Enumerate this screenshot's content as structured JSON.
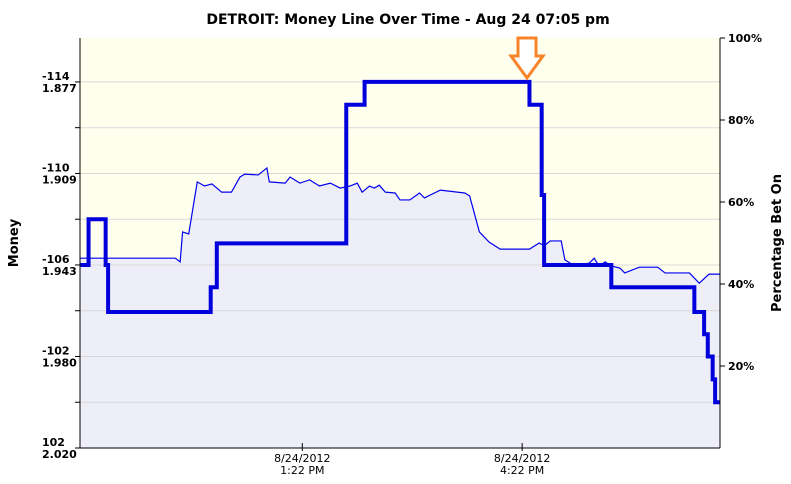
{
  "chart_data": {
    "type": "line",
    "title": "DETROIT: Money Line Over Time - Aug 24 07:05 pm",
    "ylabel": "Money",
    "y2label": "Percentage Bet On",
    "xlim": [
      "2012-08-24 10:20",
      "2012-08-24 19:04"
    ],
    "xticks": [
      {
        "value": "2012-08-24 13:22",
        "label": "8/24/2012\n1:22 PM"
      },
      {
        "value": "2012-08-24 16:22",
        "label": "8/24/2012\n4:22 PM"
      }
    ],
    "yticks": [
      {
        "value": 1.877,
        "label": "1.877",
        "moneyline": "-114"
      },
      {
        "value": 1.909,
        "label": "1.909",
        "moneyline": "-110"
      },
      {
        "value": 1.943,
        "label": "1.943",
        "moneyline": "-106"
      },
      {
        "value": 1.98,
        "label": "1.980",
        "moneyline": "-102"
      },
      {
        "value": 2.02,
        "label": "2.020",
        "moneyline": "102"
      }
    ],
    "y2lim": [
      0,
      100
    ],
    "y2ticks": [
      {
        "value": 20,
        "label": "20%"
      },
      {
        "value": 40,
        "label": "40%"
      },
      {
        "value": 60,
        "label": "60%"
      },
      {
        "value": 80,
        "label": "80%"
      },
      {
        "value": 100,
        "label": "100%"
      }
    ],
    "grid": true,
    "background": "#ffffee",
    "series": [
      {
        "axis": "y2",
        "color": "#0000ee",
        "fill": "#eeeef8",
        "width": 1.2,
        "x": [
          "2012-08-24 10:20",
          "2012-08-24 11:38",
          "2012-08-24 11:42",
          "2012-08-24 11:44",
          "2012-08-24 11:49",
          "2012-08-24 11:56",
          "2012-08-24 12:02",
          "2012-08-24 12:08",
          "2012-08-24 12:16",
          "2012-08-24 12:24",
          "2012-08-24 12:31",
          "2012-08-24 12:35",
          "2012-08-24 12:46",
          "2012-08-24 12:53",
          "2012-08-24 12:55",
          "2012-08-24 13:08",
          "2012-08-24 13:12",
          "2012-08-24 13:20",
          "2012-08-24 13:28",
          "2012-08-24 13:36",
          "2012-08-24 13:45",
          "2012-08-24 13:53",
          "2012-08-24 14:01",
          "2012-08-24 14:07",
          "2012-08-24 14:11",
          "2012-08-24 14:17",
          "2012-08-24 14:21",
          "2012-08-24 14:25",
          "2012-08-24 14:30",
          "2012-08-24 14:38",
          "2012-08-24 14:42",
          "2012-08-24 14:50",
          "2012-08-24 14:58",
          "2012-08-24 15:02",
          "2012-08-24 15:15",
          "2012-08-24 15:35",
          "2012-08-24 15:39",
          "2012-08-24 15:47",
          "2012-08-24 15:55",
          "2012-08-24 16:04",
          "2012-08-24 16:28",
          "2012-08-24 16:36",
          "2012-08-24 16:40",
          "2012-08-24 16:45",
          "2012-08-24 16:54",
          "2012-08-24 16:57",
          "2012-08-24 17:05",
          "2012-08-24 17:17",
          "2012-08-24 17:21",
          "2012-08-24 17:25",
          "2012-08-24 17:30",
          "2012-08-24 17:35",
          "2012-08-24 17:42",
          "2012-08-24 17:46",
          "2012-08-24 17:58",
          "2012-08-24 18:13",
          "2012-08-24 18:19",
          "2012-08-24 18:39",
          "2012-08-24 18:47",
          "2012-08-24 18:55",
          "2012-08-24 19:04"
        ],
        "values": [
          46.3,
          46.3,
          45.4,
          52.7,
          52.2,
          64.9,
          63.9,
          64.4,
          62.4,
          62.4,
          66.1,
          66.8,
          66.6,
          68.3,
          64.9,
          64.6,
          66.1,
          64.6,
          65.4,
          63.9,
          64.6,
          63.4,
          63.9,
          64.6,
          62.4,
          63.9,
          63.4,
          64.1,
          62.4,
          62.2,
          60.5,
          60.5,
          62.2,
          61.0,
          62.9,
          62.2,
          61.5,
          52.7,
          50.2,
          48.5,
          48.5,
          50.0,
          49.3,
          50.5,
          50.5,
          45.9,
          44.4,
          45.1,
          46.3,
          44.4,
          45.4,
          44.4,
          43.9,
          42.7,
          44.1,
          44.1,
          42.7,
          42.7,
          40.2,
          42.4,
          42.4
        ]
      },
      {
        "axis": "y",
        "color": "#0000dd",
        "style": "step",
        "width": 4,
        "x": [
          "2012-08-24 10:20",
          "2012-08-24 10:27",
          "2012-08-24 10:41",
          "2012-08-24 10:43",
          "2012-08-24 12:07",
          "2012-08-24 12:12",
          "2012-08-24 13:58",
          "2012-08-24 14:13",
          "2012-08-24 16:28",
          "2012-08-24 16:38",
          "2012-08-24 16:40",
          "2012-08-24 17:35",
          "2012-08-24 18:43",
          "2012-08-24 18:51",
          "2012-08-24 18:54",
          "2012-08-24 18:58",
          "2012-08-24 19:00"
        ],
        "values": [
          1.943,
          1.926,
          1.943,
          1.962,
          1.952,
          1.935,
          1.885,
          1.877,
          1.885,
          1.917,
          1.943,
          1.952,
          1.962,
          1.971,
          1.98,
          1.99,
          2.0
        ]
      }
    ]
  }
}
